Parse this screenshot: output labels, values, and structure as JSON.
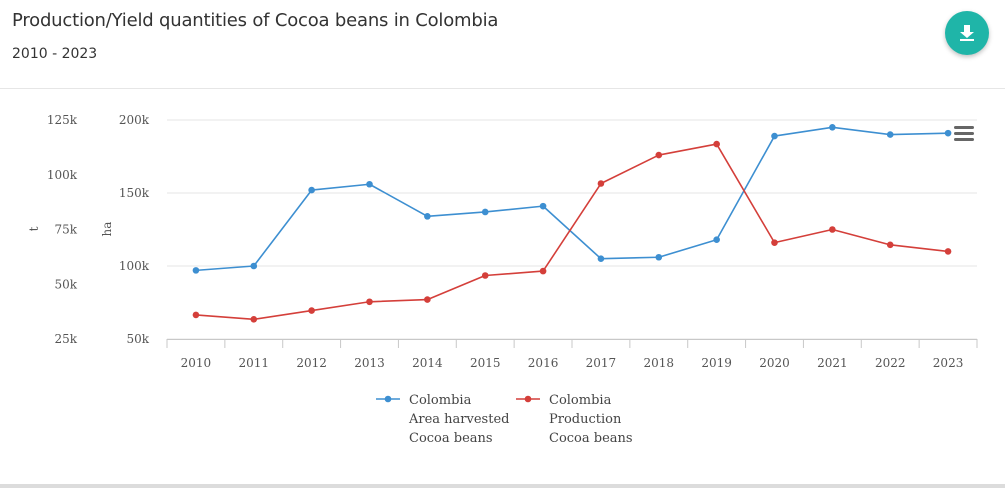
{
  "header": {
    "title": "Production/Yield quantities of Cocoa beans in Colombia",
    "subtitle": "2010 - 2023",
    "download_icon": "download-icon",
    "menu_icon": "hamburger-menu-icon"
  },
  "colors": {
    "area_harvested": "#3d8fd1",
    "production": "#d43f3a",
    "download_button": "#1fb5a8"
  },
  "chart_data": {
    "type": "line",
    "categories": [
      "2010",
      "2011",
      "2012",
      "2013",
      "2014",
      "2015",
      "2016",
      "2017",
      "2018",
      "2019",
      "2020",
      "2021",
      "2022",
      "2023"
    ],
    "axes": {
      "t": {
        "label": "t",
        "ticks": [
          "125k",
          "100k",
          "75k",
          "50k",
          "25k"
        ],
        "range": [
          25000,
          125000
        ]
      },
      "ha": {
        "label": "ha",
        "ticks": [
          "200k",
          "150k",
          "100k",
          "50k"
        ],
        "range": [
          50000,
          200000
        ]
      }
    },
    "series": [
      {
        "name": "Colombia\nArea harvested\nCocoa beans",
        "legend_lines": [
          "Colombia",
          "Area harvested",
          "Cocoa beans"
        ],
        "axis": "ha",
        "color": "#3d8fd1",
        "values": [
          97000,
          100000,
          152000,
          156000,
          134000,
          137000,
          141000,
          105000,
          106000,
          118000,
          189000,
          195000,
          190000,
          191000
        ]
      },
      {
        "name": "Colombia\nProduction\nCocoa beans",
        "legend_lines": [
          "Colombia",
          "Production",
          "Cocoa beans"
        ],
        "axis": "t",
        "color": "#d43f3a",
        "values": [
          36000,
          34000,
          38000,
          42000,
          43000,
          54000,
          56000,
          96000,
          109000,
          114000,
          69000,
          75000,
          68000,
          65000
        ]
      }
    ],
    "grid": true,
    "legend": "bottom-center"
  }
}
